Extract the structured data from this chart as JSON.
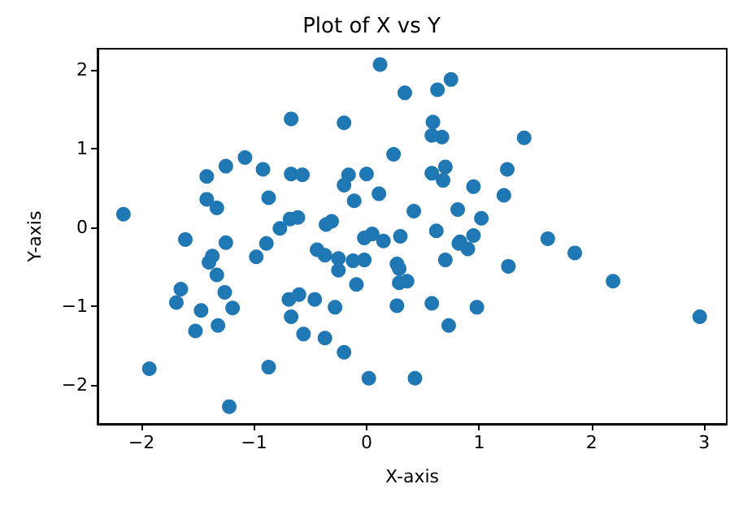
{
  "chart_data": {
    "type": "scatter",
    "title": "Plot of X vs Y",
    "xlabel": "X-axis",
    "ylabel": "Y-axis",
    "x": [
      0.12,
      0.34,
      -0.67,
      -0.2,
      0.24,
      -1.08,
      -1.25,
      -0.92,
      -1.42,
      -0.67,
      -0.57,
      -0.16,
      0.0,
      -0.2,
      0.11,
      -0.11,
      -1.42,
      -1.33,
      -0.87,
      -2.16,
      -0.68,
      -0.61,
      -0.36,
      -0.31,
      -0.77,
      -1.61,
      -1.25,
      -0.89,
      -0.02,
      0.05,
      0.15,
      0.3,
      0.63,
      0.75,
      0.59,
      0.58,
      0.67,
      1.4,
      0.58,
      0.7,
      0.68,
      1.25,
      0.95,
      1.22,
      0.42,
      0.81,
      1.02,
      0.62,
      0.83,
      0.95,
      1.61,
      -0.98,
      -1.4,
      -1.37,
      -1.33,
      -1.65,
      -1.69,
      -1.26,
      -1.19,
      -1.47,
      -1.52,
      -1.32,
      -1.93,
      -1.22,
      -0.87,
      -0.69,
      -0.6,
      -0.46,
      -0.67,
      -0.56,
      -0.28,
      -0.37,
      -0.2,
      0.02,
      -0.44,
      -0.37,
      -0.25,
      -0.25,
      -0.12,
      -0.02,
      -0.09,
      0.27,
      0.29,
      0.27,
      0.82,
      0.9,
      0.7,
      0.29,
      0.36,
      1.26,
      1.85,
      2.19,
      2.96,
      0.58,
      0.98,
      0.73,
      0.43
    ],
    "values": [
      2.07,
      1.71,
      1.38,
      1.33,
      0.93,
      0.89,
      0.78,
      0.74,
      0.65,
      0.68,
      0.67,
      0.67,
      0.68,
      0.54,
      0.43,
      0.34,
      0.36,
      0.25,
      0.38,
      0.17,
      0.11,
      0.13,
      0.04,
      0.08,
      -0.01,
      -0.15,
      -0.19,
      -0.2,
      -0.13,
      -0.08,
      -0.17,
      -0.11,
      1.75,
      1.88,
      1.34,
      1.17,
      1.15,
      1.14,
      0.69,
      0.77,
      0.6,
      0.74,
      0.52,
      0.41,
      0.21,
      0.23,
      0.12,
      -0.04,
      -0.18,
      -0.1,
      -0.14,
      -0.37,
      -0.44,
      -0.36,
      -0.6,
      -0.78,
      -0.95,
      -0.82,
      -1.02,
      -1.05,
      -1.31,
      -1.24,
      -1.79,
      -2.27,
      -1.77,
      -0.91,
      -0.85,
      -0.91,
      -1.13,
      -1.35,
      -1.01,
      -1.4,
      -1.58,
      -1.91,
      -0.28,
      -0.35,
      -0.39,
      -0.54,
      -0.42,
      -0.41,
      -0.72,
      -0.46,
      -0.7,
      -0.99,
      -0.2,
      -0.27,
      -0.41,
      -0.52,
      -0.68,
      -0.49,
      -0.32,
      -0.68,
      -1.13,
      -0.96,
      -1.01,
      -1.24,
      -1.91
    ],
    "color": "#1f77b4",
    "marker": "circle",
    "xlim": [
      -2.39,
      3.2
    ],
    "xticks": [
      -2,
      -1,
      0,
      1,
      2,
      3
    ],
    "ylim": [
      -2.49,
      2.27
    ],
    "yticks": [
      -2,
      -1,
      0,
      1,
      2
    ],
    "grid": false
  }
}
